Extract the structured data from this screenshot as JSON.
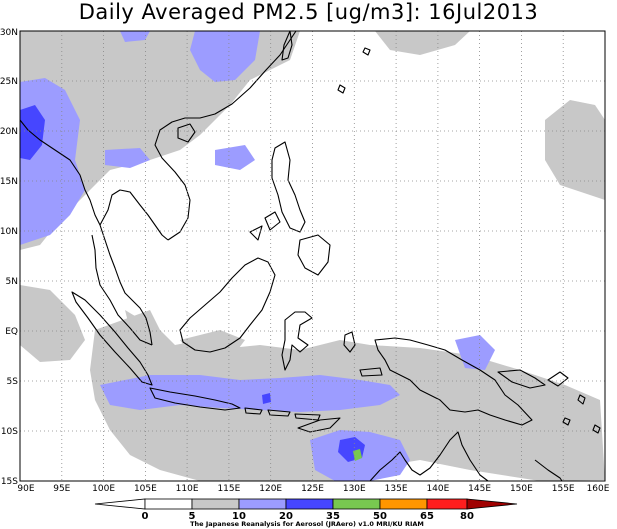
{
  "title": "Daily Averaged PM2.5 [ug/m3]: 16Jul2013",
  "map": {
    "region": "Southeast Asia / Maritime Continent",
    "lon_range": [
      90,
      160
    ],
    "lat_range": [
      -15,
      30
    ],
    "lon_ticks": [
      "90E",
      "95E",
      "100E",
      "105E",
      "110E",
      "115E",
      "120E",
      "125E",
      "130E",
      "135E",
      "140E",
      "145E",
      "150E",
      "155E",
      "160E"
    ],
    "lat_ticks": [
      "30N",
      "25N",
      "20N",
      "15N",
      "10N",
      "5N",
      "EQ",
      "5S",
      "10S",
      "15S"
    ],
    "grid": "dotted"
  },
  "colorbar": {
    "levels": [
      "0",
      "5",
      "10",
      "20",
      "35",
      "50",
      "65",
      "80"
    ],
    "colors": [
      "#ffffff",
      "#ffffff",
      "#c8c8c8",
      "#9c9cff",
      "#4646ff",
      "#78c850",
      "#ff9600",
      "#ff1e1e",
      "#a00000"
    ]
  },
  "credit": "The Japanese Reanalysis for Aerosol (JRAero) v1.0 MRI/KU RIAM"
}
